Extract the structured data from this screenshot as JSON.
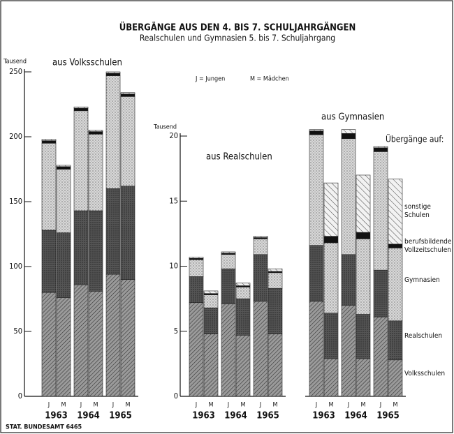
{
  "title": "ÜBERGÄNGE AUS DEN 4. BIS 7. SCHULJAHRGÄNGEN",
  "subtitle": "Realschulen und Gymnasien 5. bis 7. Schuljahrgang",
  "notes": [
    "J = Jungen",
    "M = Mädchen"
  ],
  "legend_title": "Übergänge auf:",
  "source": "STAT. BUNDESAMT 6465",
  "chart_data": [
    {
      "type": "bar",
      "stacked": true,
      "title": "aus Volksschulen",
      "ylabel": "Tausend",
      "categories": [
        "J",
        "M",
        "J",
        "M",
        "J",
        "M"
      ],
      "groups": [
        "1963",
        "1964",
        "1965"
      ],
      "ylim": [
        0,
        250
      ],
      "yticks": [
        0,
        50,
        100,
        150,
        200,
        250
      ],
      "series": [
        {
          "color": "#9a9a9a",
          "values": [
            80,
            76,
            86,
            81,
            94,
            90
          ]
        },
        {
          "color": "#555555",
          "values": [
            48,
            50,
            57,
            62,
            66,
            72
          ]
        },
        {
          "color": "#d8d8d8",
          "values": [
            67,
            49,
            77,
            59,
            87,
            69
          ]
        },
        {
          "color": "#111111",
          "values": [
            2,
            2,
            2,
            2,
            2,
            2
          ]
        },
        {
          "color": "#f2f2f2",
          "values": [
            1,
            1,
            1,
            1,
            1,
            1
          ]
        }
      ]
    },
    {
      "type": "bar",
      "stacked": true,
      "title": "aus Realschulen",
      "ylabel": "Tausend",
      "categories": [
        "J",
        "M",
        "J",
        "M",
        "J",
        "M"
      ],
      "groups": [
        "1963",
        "1964",
        "1965"
      ],
      "ylim": [
        0,
        20
      ],
      "yticks": [
        0,
        5,
        10,
        15,
        20
      ],
      "series": [
        {
          "color": "#9a9a9a",
          "values": [
            7.2,
            4.8,
            7.1,
            4.7,
            7.3,
            4.8
          ]
        },
        {
          "color": "#555555",
          "values": [
            2.0,
            2.0,
            2.7,
            2.8,
            3.6,
            3.5
          ]
        },
        {
          "color": "#d8d8d8",
          "values": [
            1.3,
            1.0,
            1.1,
            0.9,
            1.2,
            1.2
          ]
        },
        {
          "color": "#111111",
          "values": [
            0.1,
            0.1,
            0.1,
            0.1,
            0.1,
            0.1
          ]
        },
        {
          "color": "#f2f2f2",
          "values": [
            0.1,
            0.2,
            0.1,
            0.2,
            0.1,
            0.2
          ]
        }
      ]
    },
    {
      "type": "bar",
      "stacked": true,
      "title": "aus Gymnasien",
      "categories": [
        "J",
        "M",
        "J",
        "M",
        "J",
        "M"
      ],
      "groups": [
        "1963",
        "1964",
        "1965"
      ],
      "ylim": [
        0,
        20
      ],
      "series": [
        {
          "name": "Volksschulen",
          "color": "#9a9a9a",
          "values": [
            7.3,
            2.9,
            7.0,
            2.9,
            6.1,
            2.8
          ]
        },
        {
          "name": "Realschulen",
          "color": "#555555",
          "values": [
            4.3,
            3.5,
            3.9,
            3.4,
            3.6,
            3.0
          ]
        },
        {
          "name": "Gymnasien",
          "color": "#d8d8d8",
          "values": [
            8.5,
            5.4,
            8.9,
            5.8,
            9.1,
            5.6
          ]
        },
        {
          "name": "berufsbildende Vollzeitschulen",
          "color": "#111111",
          "values": [
            0.3,
            0.5,
            0.4,
            0.5,
            0.3,
            0.3
          ]
        },
        {
          "name": "sonstige Schulen",
          "color": "#f2f2f2",
          "values": [
            0.1,
            4.1,
            0.3,
            4.4,
            0.1,
            5.0
          ]
        }
      ]
    }
  ]
}
